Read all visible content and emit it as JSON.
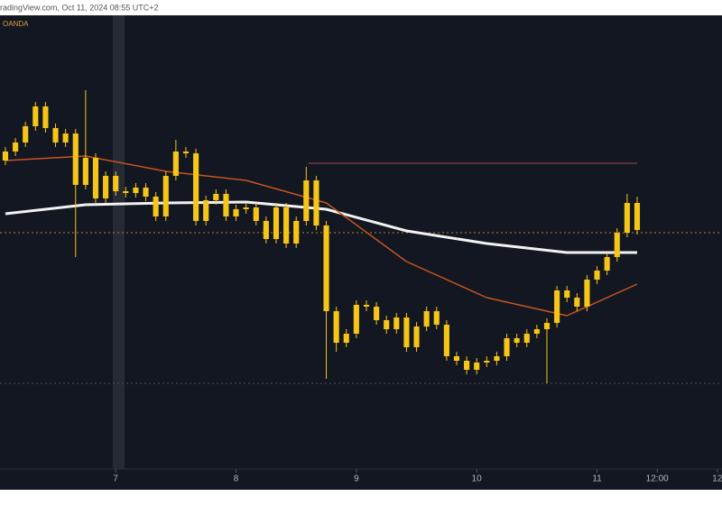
{
  "header": {
    "source": "radingView.com, Oct 11, 2024 08:55 UTC+2",
    "symbol": "OANDA"
  },
  "chart_data": {
    "type": "candlestick",
    "color": "#f5c518",
    "x": [
      6.0833,
      6.1667,
      6.25,
      6.3333,
      6.4167,
      6.5,
      6.5833,
      6.6667,
      6.75,
      6.8333,
      6.9167,
      7,
      7.0833,
      7.1667,
      7.25,
      7.3333,
      7.4167,
      7.5,
      7.5833,
      7.6667,
      7.75,
      7.8333,
      7.9167,
      8,
      8.0833,
      8.1667,
      8.25,
      8.3333,
      8.4167,
      8.5,
      8.5833,
      8.6667,
      8.75,
      8.8333,
      8.9167,
      9,
      9.0833,
      9.1667,
      9.25,
      9.3333,
      9.4167,
      9.5,
      9.5833,
      9.6667,
      9.75,
      9.8333,
      9.9167,
      10,
      10.0833,
      10.1667,
      10.25,
      10.3333,
      10.4167,
      10.5,
      10.5833,
      10.6667,
      10.75,
      10.8333,
      10.9167,
      11,
      11.0833,
      11.1667,
      11.25,
      11.3333
    ],
    "open": [
      362,
      372,
      382,
      400,
      422,
      398,
      382,
      392,
      335,
      365,
      320,
      345,
      328,
      326,
      332,
      322,
      300,
      345,
      372,
      370,
      295,
      318,
      325,
      300,
      308,
      310,
      295,
      275,
      310,
      270,
      295,
      340,
      290,
      195,
      160,
      170,
      202,
      200,
      185,
      175,
      188,
      155,
      178,
      195,
      180,
      145,
      140,
      130,
      138,
      140,
      145,
      165,
      160,
      170,
      175,
      182,
      218,
      210,
      200,
      230,
      240,
      255,
      282,
      315
    ],
    "high": [
      377,
      387,
      405,
      427,
      427,
      403,
      397,
      397,
      440,
      370,
      350,
      350,
      333,
      337,
      337,
      327,
      350,
      385,
      377,
      375,
      323,
      330,
      330,
      313,
      315,
      315,
      300,
      315,
      315,
      300,
      355,
      345,
      295,
      200,
      175,
      207,
      207,
      205,
      190,
      193,
      193,
      183,
      200,
      200,
      185,
      150,
      145,
      143,
      145,
      150,
      170,
      170,
      175,
      180,
      187,
      223,
      223,
      215,
      235,
      245,
      260,
      287,
      325,
      322
    ],
    "low": [
      357,
      367,
      377,
      395,
      393,
      377,
      377,
      255,
      330,
      315,
      315,
      323,
      321,
      321,
      317,
      295,
      295,
      340,
      365,
      290,
      290,
      313,
      295,
      295,
      303,
      290,
      270,
      270,
      265,
      265,
      290,
      285,
      120,
      150,
      155,
      165,
      195,
      180,
      170,
      170,
      150,
      150,
      173,
      175,
      140,
      135,
      125,
      125,
      133,
      135,
      140,
      155,
      155,
      165,
      115,
      177,
      205,
      195,
      195,
      225,
      235,
      250,
      277,
      280
    ],
    "close": [
      372,
      382,
      400,
      422,
      398,
      382,
      392,
      335,
      365,
      320,
      345,
      328,
      326,
      332,
      322,
      300,
      345,
      372,
      370,
      295,
      318,
      325,
      300,
      308,
      310,
      295,
      275,
      310,
      270,
      295,
      340,
      290,
      195,
      160,
      170,
      202,
      200,
      185,
      175,
      188,
      155,
      178,
      195,
      180,
      145,
      140,
      130,
      138,
      140,
      145,
      165,
      160,
      170,
      175,
      182,
      218,
      210,
      200,
      230,
      240,
      255,
      282,
      315,
      285
    ],
    "lines": [
      {
        "color": "#f2f2f2",
        "x": [
          6.0833,
          6.75,
          7.4167,
          8.0833,
          8.75,
          9.4167,
          10.0833,
          10.75,
          11.3333
        ],
        "values": [
          303,
          313,
          315,
          316,
          308,
          284,
          270,
          260,
          260
        ]
      },
      {
        "color": "#c8541f",
        "x": [
          6.0833,
          6.75,
          7.4167,
          8.0833,
          8.75,
          9.4167,
          10.0833,
          10.75,
          11.3333
        ],
        "values": [
          362,
          367,
          350,
          340,
          315,
          250,
          210,
          190,
          225
        ]
      }
    ],
    "hlines": [
      {
        "value": 359,
        "color": "#9c4a55",
        "dashed": false,
        "from": 8.6
      },
      {
        "value": 282,
        "color": "#b8862b",
        "dashed": true
      },
      {
        "value": 115,
        "color": "#4a4f5e",
        "dashed": true
      }
    ],
    "xlim": [
      6.0385,
      12.0385
    ],
    "ylim": [
      0,
      523
    ],
    "xticks": [
      7,
      8,
      9,
      10,
      11,
      {
        "value": 11.5,
        "label": "12:00"
      },
      {
        "value": 12,
        "label": "12"
      }
    ]
  }
}
